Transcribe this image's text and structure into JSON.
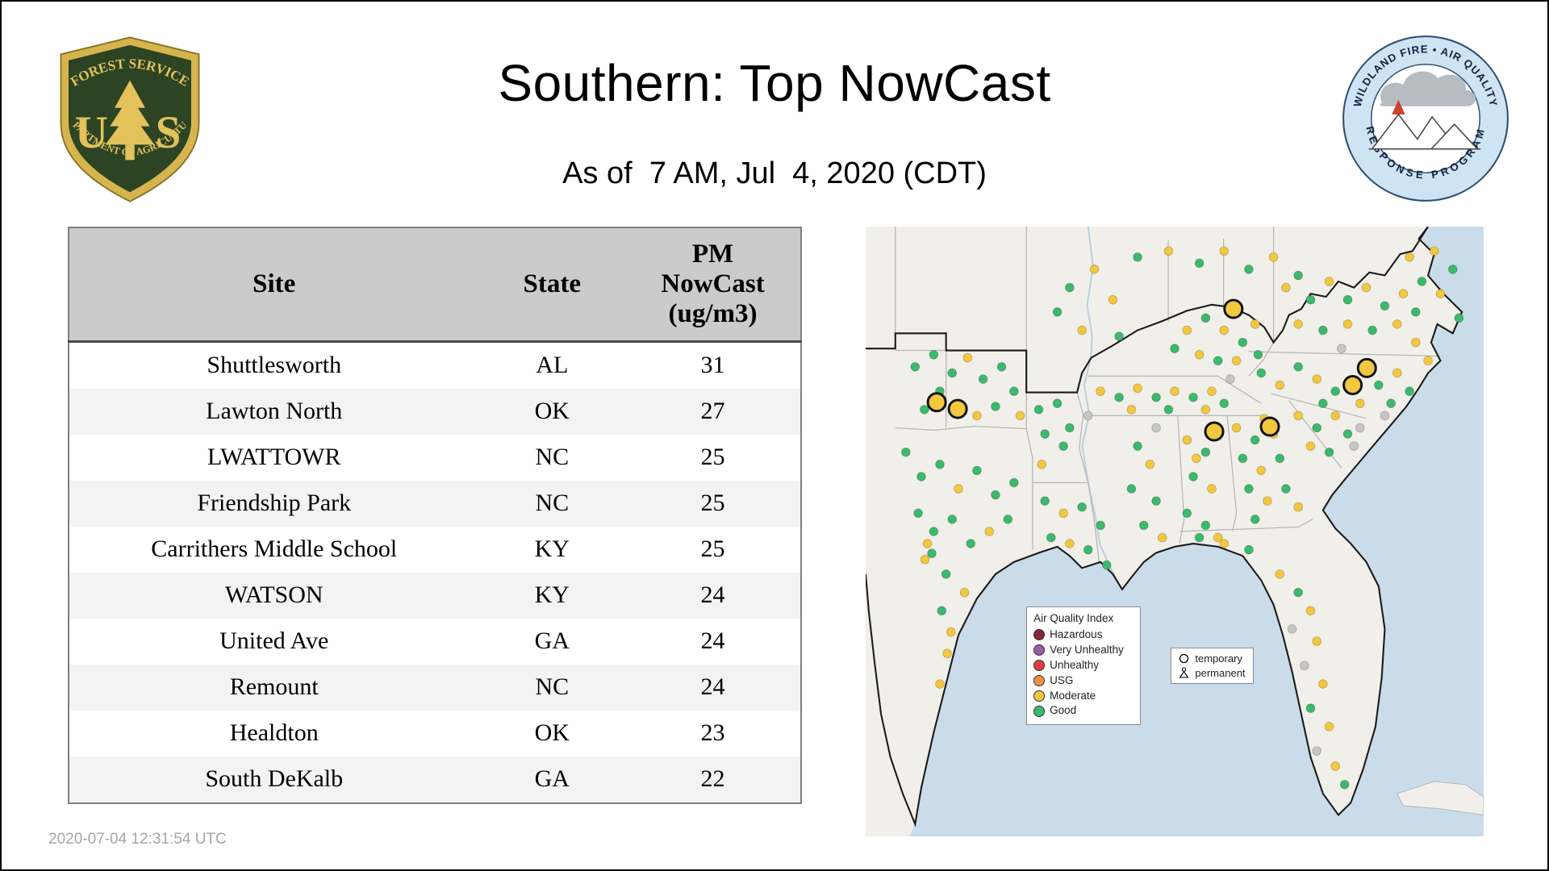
{
  "header": {
    "title": "Southern: Top NowCast",
    "subtitle": "As of  7 AM, Jul  4, 2020 (CDT)"
  },
  "logos": {
    "usfs": {
      "top": "FOREST SERVICE",
      "left_letter": "U",
      "right_letter": "S",
      "bottom": "DEPARTMENT OF AGRICULTURE"
    },
    "program": {
      "top": "WILDLAND FIRE • AIR QUALITY",
      "bottom": "RESPONSE PROGRAM"
    }
  },
  "table": {
    "columns": {
      "site": "Site",
      "state": "State",
      "pm_lines": [
        "PM",
        "NowCast",
        "(ug/m3)"
      ]
    },
    "rows": [
      {
        "site": "Shuttlesworth",
        "state": "AL",
        "value": "31"
      },
      {
        "site": "Lawton North",
        "state": "OK",
        "value": "27"
      },
      {
        "site": "LWATTOWR",
        "state": "NC",
        "value": "25"
      },
      {
        "site": "Friendship Park",
        "state": "NC",
        "value": "25"
      },
      {
        "site": "Carrithers Middle School",
        "state": "KY",
        "value": "25"
      },
      {
        "site": "WATSON",
        "state": "KY",
        "value": "24"
      },
      {
        "site": "United Ave",
        "state": "GA",
        "value": "24"
      },
      {
        "site": "Remount",
        "state": "NC",
        "value": "24"
      },
      {
        "site": "Healdton",
        "state": "OK",
        "value": "23"
      },
      {
        "site": "South DeKalb",
        "state": "GA",
        "value": "22"
      }
    ]
  },
  "map": {
    "colors": {
      "water": "#cadcea",
      "land": "#f1efe9",
      "state_line": "#b5b5b5",
      "region_border": "#1a1a1a",
      "good": "#3cb96c",
      "moderate": "#f3c73e",
      "no_data": "#c6c6c6"
    },
    "aqi_legend": {
      "title": "Air Quality Index",
      "items": [
        {
          "label": "Hazardous",
          "color": "#8a2333"
        },
        {
          "label": "Very Unhealthy",
          "color": "#9a5ba4"
        },
        {
          "label": "Unhealthy",
          "color": "#e23b3f"
        },
        {
          "label": "USG",
          "color": "#ef9245"
        },
        {
          "label": "Moderate",
          "color": "#f3c73e"
        },
        {
          "label": "Good",
          "color": "#3cb96c"
        }
      ]
    },
    "marker_legend": {
      "items": [
        {
          "label": "temporary"
        },
        {
          "label": "permanent"
        }
      ]
    },
    "large_markers": [
      [
        59.5,
        13.5
      ],
      [
        11.5,
        28.8
      ],
      [
        14.9,
        29.9
      ],
      [
        78.8,
        26.0
      ],
      [
        81.1,
        23.2
      ],
      [
        56.4,
        33.6
      ],
      [
        65.4,
        32.8
      ]
    ],
    "dots": [
      [
        8,
        23,
        "g"
      ],
      [
        11,
        21,
        "g"
      ],
      [
        14,
        24,
        "g"
      ],
      [
        16.5,
        21.5,
        "y"
      ],
      [
        19,
        25,
        "g"
      ],
      [
        22,
        23,
        "g"
      ],
      [
        12,
        27,
        "g"
      ],
      [
        15,
        29,
        "g"
      ],
      [
        18,
        31,
        "y"
      ],
      [
        21,
        29.5,
        "g"
      ],
      [
        24,
        27,
        "g"
      ],
      [
        9.5,
        30,
        "g"
      ],
      [
        25,
        31,
        "y"
      ],
      [
        6.5,
        37,
        "g"
      ],
      [
        9,
        41,
        "g"
      ],
      [
        12,
        39,
        "g"
      ],
      [
        15,
        43,
        "y"
      ],
      [
        18,
        40,
        "g"
      ],
      [
        21,
        44,
        "g"
      ],
      [
        24,
        42,
        "g"
      ],
      [
        8.5,
        47,
        "g"
      ],
      [
        11,
        50,
        "g"
      ],
      [
        14,
        48,
        "g"
      ],
      [
        17,
        52,
        "g"
      ],
      [
        20,
        50,
        "y"
      ],
      [
        23,
        48,
        "g"
      ],
      [
        10,
        52,
        "y"
      ],
      [
        10.7,
        53.6,
        "g"
      ],
      [
        9.6,
        54.6,
        "y"
      ],
      [
        13,
        57,
        "g"
      ],
      [
        16,
        60,
        "y"
      ],
      [
        12.3,
        63,
        "g"
      ],
      [
        13.8,
        66.5,
        "y"
      ],
      [
        13.2,
        70,
        "y"
      ],
      [
        12,
        75,
        "y"
      ],
      [
        28,
        30,
        "g"
      ],
      [
        31,
        29,
        "g"
      ],
      [
        29,
        34,
        "g"
      ],
      [
        32,
        36,
        "g"
      ],
      [
        28.5,
        39,
        "y"
      ],
      [
        33,
        33,
        "g"
      ],
      [
        29,
        45,
        "g"
      ],
      [
        32,
        47,
        "y"
      ],
      [
        35,
        46,
        "g"
      ],
      [
        38,
        49,
        "g"
      ],
      [
        30,
        51,
        "g"
      ],
      [
        33,
        52,
        "y"
      ],
      [
        36,
        53,
        "g"
      ],
      [
        39,
        55.5,
        "g"
      ],
      [
        44,
        36,
        "g"
      ],
      [
        46,
        39,
        "y"
      ],
      [
        43,
        43,
        "g"
      ],
      [
        47,
        45,
        "g"
      ],
      [
        45,
        49,
        "g"
      ],
      [
        48,
        51,
        "y"
      ],
      [
        52,
        35,
        "y"
      ],
      [
        55,
        37,
        "g"
      ],
      [
        53,
        41,
        "g"
      ],
      [
        56,
        43,
        "y"
      ],
      [
        52,
        47,
        "g"
      ],
      [
        55,
        49,
        "g"
      ],
      [
        57,
        51,
        "y"
      ],
      [
        53.5,
        38,
        "y"
      ],
      [
        38,
        27,
        "y"
      ],
      [
        41,
        28,
        "g"
      ],
      [
        44,
        26.5,
        "y"
      ],
      [
        47,
        28,
        "g"
      ],
      [
        50,
        27,
        "y"
      ],
      [
        53,
        28,
        "g"
      ],
      [
        56,
        27,
        "y"
      ],
      [
        58,
        29,
        "g"
      ],
      [
        43,
        30,
        "y"
      ],
      [
        49,
        30,
        "g"
      ],
      [
        55,
        30,
        "y"
      ],
      [
        52,
        17,
        "y"
      ],
      [
        55,
        15,
        "g"
      ],
      [
        58,
        17,
        "y"
      ],
      [
        61,
        19,
        "g"
      ],
      [
        63,
        16,
        "y"
      ],
      [
        50,
        20,
        "g"
      ],
      [
        54,
        21,
        "y"
      ],
      [
        57,
        22,
        "g"
      ],
      [
        60,
        22,
        "y"
      ],
      [
        63.5,
        21,
        "g"
      ],
      [
        33,
        10,
        "g"
      ],
      [
        37,
        7,
        "y"
      ],
      [
        40,
        12,
        "y"
      ],
      [
        44,
        5,
        "g"
      ],
      [
        49,
        4,
        "y"
      ],
      [
        54,
        6,
        "g"
      ],
      [
        58,
        4,
        "y"
      ],
      [
        62,
        7,
        "g"
      ],
      [
        66,
        5,
        "y"
      ],
      [
        70,
        8,
        "g"
      ],
      [
        31,
        14,
        "g"
      ],
      [
        35,
        17,
        "y"
      ],
      [
        41,
        18,
        "g"
      ],
      [
        68,
        10,
        "y"
      ],
      [
        72,
        12,
        "g"
      ],
      [
        75,
        9,
        "y"
      ],
      [
        78,
        12,
        "g"
      ],
      [
        81,
        10,
        "y"
      ],
      [
        84,
        13,
        "g"
      ],
      [
        87,
        11,
        "y"
      ],
      [
        90,
        9,
        "g"
      ],
      [
        70,
        16,
        "y"
      ],
      [
        74,
        17,
        "g"
      ],
      [
        78,
        16,
        "y"
      ],
      [
        82,
        17,
        "g"
      ],
      [
        86,
        16,
        "y"
      ],
      [
        89,
        14,
        "g"
      ],
      [
        92,
        4,
        "y"
      ],
      [
        95,
        7,
        "g"
      ],
      [
        88,
        5,
        "y"
      ],
      [
        93,
        11,
        "y"
      ],
      [
        96,
        15,
        "g"
      ],
      [
        64,
        24,
        "g"
      ],
      [
        67,
        26,
        "y"
      ],
      [
        70,
        23,
        "g"
      ],
      [
        73,
        25,
        "y"
      ],
      [
        76,
        27,
        "g"
      ],
      [
        83,
        26,
        "g"
      ],
      [
        86,
        24,
        "y"
      ],
      [
        88,
        27,
        "g"
      ],
      [
        91,
        22,
        "y"
      ],
      [
        74,
        29,
        "g"
      ],
      [
        80,
        29,
        "y"
      ],
      [
        85,
        29,
        "g"
      ],
      [
        89,
        19,
        "y"
      ],
      [
        70,
        31,
        "y"
      ],
      [
        73,
        33,
        "g"
      ],
      [
        76,
        31,
        "y"
      ],
      [
        78,
        34,
        "g"
      ],
      [
        72,
        36,
        "y"
      ],
      [
        75,
        37,
        "g"
      ],
      [
        79,
        36,
        "n"
      ],
      [
        60,
        33,
        "y"
      ],
      [
        63,
        35,
        "g"
      ],
      [
        66,
        34,
        "y"
      ],
      [
        61,
        38,
        "g"
      ],
      [
        64,
        40,
        "y"
      ],
      [
        67,
        38,
        "g"
      ],
      [
        62,
        43,
        "g"
      ],
      [
        65,
        45,
        "y"
      ],
      [
        68,
        43,
        "g"
      ],
      [
        70,
        46,
        "y"
      ],
      [
        63,
        48,
        "g"
      ],
      [
        64.5,
        31.5,
        "y"
      ],
      [
        54,
        51,
        "g"
      ],
      [
        58,
        52,
        "y"
      ],
      [
        62,
        53,
        "g"
      ],
      [
        67,
        57,
        "y"
      ],
      [
        70,
        60,
        "g"
      ],
      [
        72,
        63,
        "y"
      ],
      [
        69,
        66,
        "n"
      ],
      [
        73,
        68,
        "y"
      ],
      [
        71,
        72,
        "n"
      ],
      [
        74,
        75,
        "y"
      ],
      [
        72,
        79,
        "g"
      ],
      [
        75,
        82,
        "y"
      ],
      [
        73,
        86,
        "n"
      ],
      [
        76,
        88.5,
        "y"
      ],
      [
        77.5,
        91.5,
        "g"
      ],
      [
        80,
        33,
        "n"
      ],
      [
        84,
        31,
        "n"
      ],
      [
        47,
        33,
        "n"
      ],
      [
        36,
        31,
        "n"
      ],
      [
        59,
        25,
        "n"
      ],
      [
        77,
        20,
        "n"
      ]
    ]
  },
  "footer": {
    "timestamp": "2020-07-04 12:31:54 UTC"
  }
}
